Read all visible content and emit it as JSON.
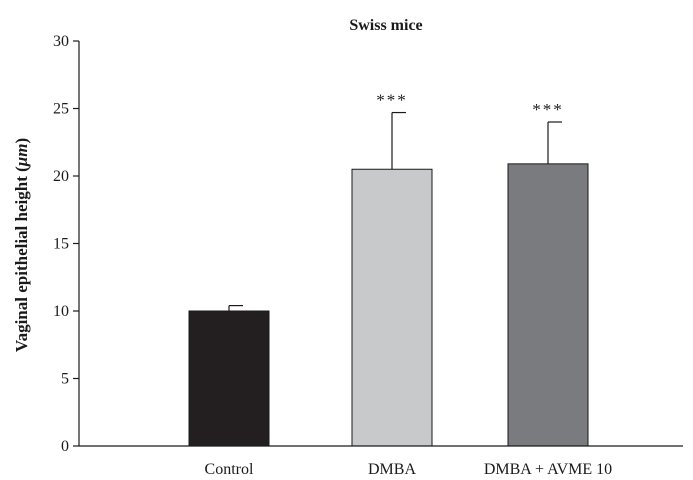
{
  "chart_data": {
    "type": "bar",
    "title": "Swiss mice",
    "xlabel": "",
    "ylabel_text": "Vaginal epithelial height (",
    "ylabel_unit": "μm",
    "ylabel_close": ")",
    "ylim": [
      0,
      30
    ],
    "yticks": [
      0,
      5,
      10,
      15,
      20,
      25,
      30
    ],
    "categories": [
      "Control",
      "DMBA",
      "DMBA + AVME 10"
    ],
    "values": [
      10.0,
      20.5,
      20.9
    ],
    "errors": [
      0.4,
      4.2,
      3.1
    ],
    "significance": [
      "",
      "***",
      "***"
    ],
    "colors": [
      "#231f20",
      "#c8c9cb",
      "#7a7b7e"
    ],
    "grid": false,
    "legend": "none"
  }
}
